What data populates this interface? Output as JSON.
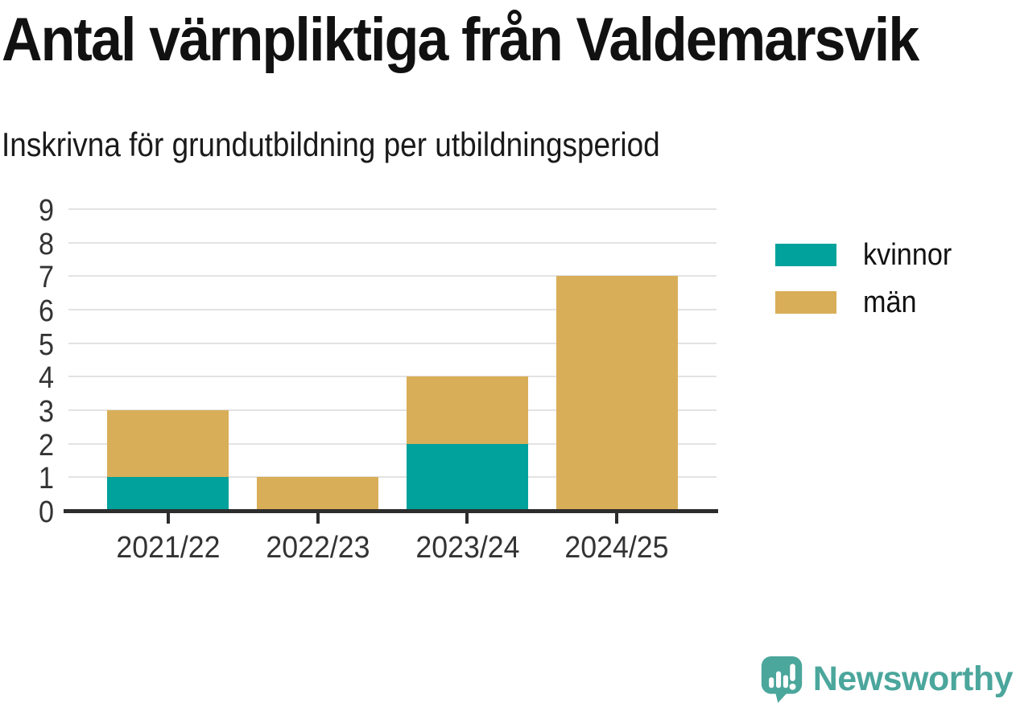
{
  "header": {
    "title": "Antal värnpliktiga från Valdemarsvik",
    "subtitle": "Inskrivna för grundutbildning per utbildningsperiod"
  },
  "chart_data": {
    "type": "bar",
    "stacked": true,
    "title": "Antal värnpliktiga från Valdemarsvik",
    "subtitle": "Inskrivna för grundutbildning per utbildningsperiod",
    "categories": [
      "2021/22",
      "2022/23",
      "2023/24",
      "2024/25"
    ],
    "series": [
      {
        "name": "kvinnor",
        "color": "#00a29b",
        "values": [
          1,
          0,
          2,
          0
        ]
      },
      {
        "name": "män",
        "color": "#d9ae58",
        "values": [
          2,
          1,
          2,
          7
        ]
      }
    ],
    "totals": [
      3,
      1,
      4,
      7
    ],
    "xlabel": "",
    "ylabel": "",
    "ylim": [
      0,
      9
    ],
    "yticks": [
      0,
      1,
      2,
      3,
      4,
      5,
      6,
      7,
      8,
      9
    ],
    "grid": true,
    "legend_position": "right"
  },
  "footer": {
    "brand": "Newsworthy",
    "brand_color": "#4ba69c",
    "logo_icon": "newsworthy-speech-bubble-bar-chart-icon"
  },
  "colors": {
    "grid": "#e3e3e3",
    "axis": "#2d2d2d",
    "tick_text": "#333333",
    "title_text": "#111111"
  }
}
